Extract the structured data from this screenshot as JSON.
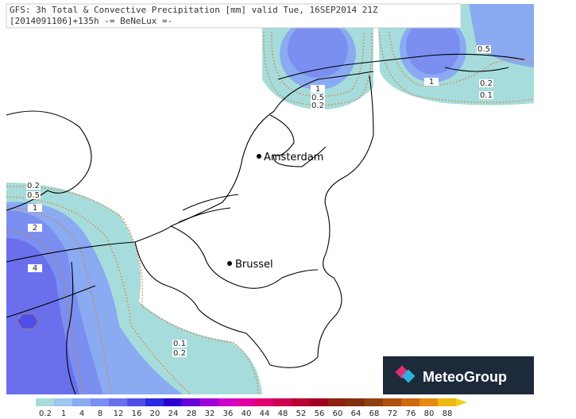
{
  "header": {
    "line1": "GFS: 3h Total & Convective Precipitation [mm] valid Tue, 16SEP2014 21Z",
    "line2": "[2014091106]+135h -= BeNeLux =-"
  },
  "cities": [
    {
      "name": "Amsterdam"
    },
    {
      "name": "Brussel"
    }
  ],
  "contour_labels": [
    "0.2",
    "0.5",
    "1",
    "2",
    "4",
    "0.1",
    "0.2",
    "1",
    "0.5",
    "0.2",
    "0.5",
    "1",
    "0.2",
    "0.1"
  ],
  "legend": {
    "labels": [
      0.2,
      1,
      4,
      8,
      12,
      16,
      20,
      24,
      28,
      32,
      36,
      40,
      44,
      48,
      52,
      56,
      60,
      64,
      68,
      72,
      76,
      80,
      88
    ],
    "colors": [
      "#a6dcdc",
      "#9fc4ee",
      "#8aaaf2",
      "#7b8ff0",
      "#6a70ec",
      "#4f4fe8",
      "#2a2ae0",
      "#2a00d0",
      "#6a00d8",
      "#a000d8",
      "#d000c8",
      "#e000a0",
      "#e00070",
      "#d00050",
      "#b80030",
      "#a00020",
      "#902010",
      "#803010",
      "#904010",
      "#b05010",
      "#d06810",
      "#e88a10",
      "#f0b810"
    ]
  },
  "logo": {
    "text": "MeteoGroup"
  }
}
